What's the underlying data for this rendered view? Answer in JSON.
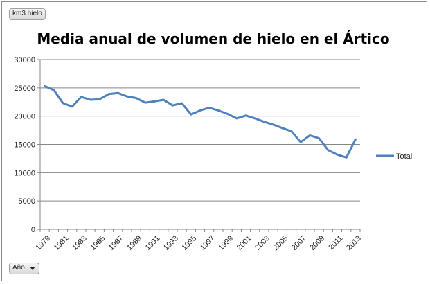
{
  "ui": {
    "values_field": "km3 hielo",
    "axis_field": "Año"
  },
  "chart_data": {
    "type": "line",
    "title": "Media anual de volumen de hielo en el Ártico",
    "xlabel": "",
    "ylabel": "",
    "ylim": [
      0,
      30000
    ],
    "yticks": [
      0,
      5000,
      10000,
      15000,
      20000,
      25000,
      30000
    ],
    "x_tick_labels": [
      "1979",
      "1981",
      "1983",
      "1985",
      "1987",
      "1989",
      "1991",
      "1993",
      "1995",
      "1997",
      "1999",
      "2001",
      "2003",
      "2005",
      "2007",
      "2009",
      "2011",
      "2013"
    ],
    "grid": true,
    "legend": "right",
    "line_color": "#4f81bd",
    "categories": [
      "1979",
      "1980",
      "1981",
      "1982",
      "1983",
      "1984",
      "1985",
      "1986",
      "1987",
      "1988",
      "1989",
      "1990",
      "1991",
      "1992",
      "1993",
      "1994",
      "1995",
      "1996",
      "1997",
      "1998",
      "1999",
      "2000",
      "2001",
      "2002",
      "2003",
      "2004",
      "2005",
      "2006",
      "2007",
      "2008",
      "2009",
      "2010",
      "2011",
      "2012",
      "2013"
    ],
    "series": [
      {
        "name": "Total",
        "values": [
          25300,
          24600,
          22300,
          21700,
          23400,
          22900,
          23000,
          23900,
          24100,
          23500,
          23200,
          22400,
          22600,
          22900,
          21900,
          22300,
          20300,
          21000,
          21500,
          21000,
          20400,
          19600,
          20100,
          19600,
          19000,
          18500,
          17900,
          17300,
          15400,
          16600,
          16100,
          14000,
          13200,
          12700,
          15900
        ]
      }
    ]
  }
}
